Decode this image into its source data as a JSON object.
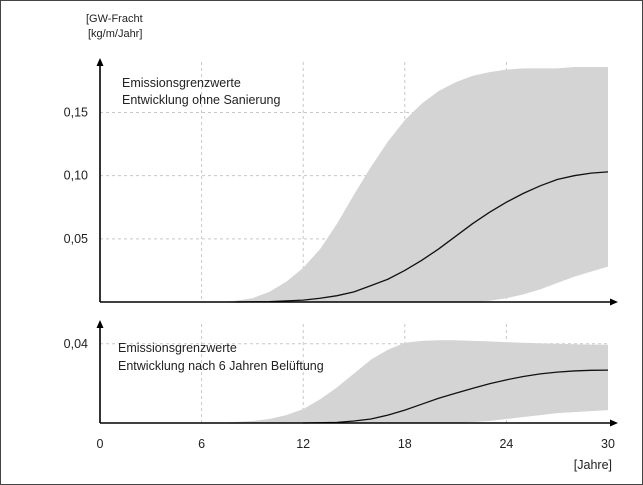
{
  "chart_data": [
    {
      "type": "area",
      "y_unit_label": [
        "[GW-Fracht",
        "[kg/m/Jahr]"
      ],
      "annotation": [
        "Emissionsgrenzwerte",
        "Entwicklung ohne Sanierung"
      ],
      "xlim": [
        0,
        30
      ],
      "ylim": [
        0,
        0.19
      ],
      "y_ticks": [
        {
          "value": 0.05,
          "label": "0,05"
        },
        {
          "value": 0.1,
          "label": "0,10"
        },
        {
          "value": 0.15,
          "label": "0,15"
        }
      ],
      "x_grid": [
        6,
        12,
        18,
        24
      ],
      "grid": true,
      "series": [
        {
          "role": "band_upper",
          "x": [
            7,
            8,
            9,
            10,
            11,
            12,
            13,
            14,
            15,
            16,
            17,
            18,
            19,
            20,
            21,
            22,
            23,
            24,
            25,
            26,
            27,
            28,
            29,
            30
          ],
          "y": [
            0,
            0.001,
            0.003,
            0.008,
            0.016,
            0.027,
            0.042,
            0.062,
            0.085,
            0.107,
            0.127,
            0.144,
            0.157,
            0.167,
            0.174,
            0.179,
            0.182,
            0.184,
            0.185,
            0.185,
            0.185,
            0.186,
            0.186,
            0.186
          ]
        },
        {
          "role": "band_lower",
          "x": [
            7,
            8,
            9,
            10,
            11,
            12,
            13,
            14,
            15,
            16,
            17,
            18,
            19,
            20,
            21,
            22,
            23,
            24,
            25,
            26,
            27,
            28,
            29,
            30
          ],
          "y": [
            0,
            0,
            0,
            0,
            0,
            0,
            0,
            0,
            0,
            0,
            0,
            0,
            0,
            0,
            0,
            0,
            0.001,
            0.003,
            0.006,
            0.01,
            0.015,
            0.02,
            0.024,
            0.028
          ]
        },
        {
          "role": "mean",
          "x": [
            8,
            10,
            12,
            13,
            14,
            15,
            16,
            17,
            18,
            19,
            20,
            21,
            22,
            23,
            24,
            25,
            26,
            27,
            28,
            29,
            30
          ],
          "y": [
            0,
            0.0003,
            0.0015,
            0.003,
            0.005,
            0.008,
            0.013,
            0.018,
            0.025,
            0.033,
            0.042,
            0.052,
            0.062,
            0.071,
            0.079,
            0.086,
            0.092,
            0.097,
            0.1,
            0.102,
            0.103
          ]
        }
      ]
    },
    {
      "type": "area",
      "annotation": [
        "Emissionsgrenzwerte",
        "Entwicklung nach 6 Jahren Belüftung"
      ],
      "xlim": [
        0,
        30
      ],
      "ylim": [
        0,
        0.05
      ],
      "y_ticks": [
        {
          "value": 0.04,
          "label": "0,04"
        }
      ],
      "x_ticks": [
        {
          "value": 0,
          "label": "0"
        },
        {
          "value": 6,
          "label": "6"
        },
        {
          "value": 12,
          "label": "12"
        },
        {
          "value": 18,
          "label": "18"
        },
        {
          "value": 24,
          "label": "24"
        },
        {
          "value": 30,
          "label": "30"
        }
      ],
      "x_unit_label": "[Jahre]",
      "x_grid": [
        6,
        12,
        18,
        24
      ],
      "grid": true,
      "series": [
        {
          "role": "band_upper",
          "x": [
            7,
            8,
            9,
            10,
            11,
            12,
            13,
            14,
            15,
            16,
            17,
            18,
            19,
            20,
            21,
            22,
            23,
            24,
            25,
            26,
            27,
            28,
            29,
            30
          ],
          "y": [
            0,
            0.0005,
            0.001,
            0.002,
            0.004,
            0.007,
            0.012,
            0.018,
            0.025,
            0.032,
            0.037,
            0.0405,
            0.0415,
            0.0418,
            0.0418,
            0.0415,
            0.0412,
            0.0408,
            0.0405,
            0.0402,
            0.04,
            0.0398,
            0.0396,
            0.0395
          ]
        },
        {
          "role": "band_lower",
          "x": [
            7,
            8,
            9,
            10,
            11,
            12,
            13,
            14,
            15,
            16,
            17,
            18,
            19,
            20,
            21,
            22,
            23,
            24,
            25,
            26,
            27,
            28,
            29,
            30
          ],
          "y": [
            0,
            0,
            0,
            0,
            0,
            0,
            0,
            0,
            0,
            0,
            0,
            0,
            0,
            0,
            0,
            0.0005,
            0.001,
            0.002,
            0.003,
            0.004,
            0.005,
            0.0055,
            0.006,
            0.0065
          ]
        },
        {
          "role": "mean",
          "x": [
            12,
            14,
            15,
            16,
            17,
            18,
            19,
            20,
            21,
            22,
            23,
            24,
            25,
            26,
            27,
            28,
            29,
            30
          ],
          "y": [
            0,
            0.0003,
            0.001,
            0.002,
            0.004,
            0.0065,
            0.0095,
            0.0125,
            0.015,
            0.0175,
            0.0198,
            0.0218,
            0.0235,
            0.0248,
            0.0257,
            0.0263,
            0.0266,
            0.0267
          ]
        }
      ]
    }
  ]
}
